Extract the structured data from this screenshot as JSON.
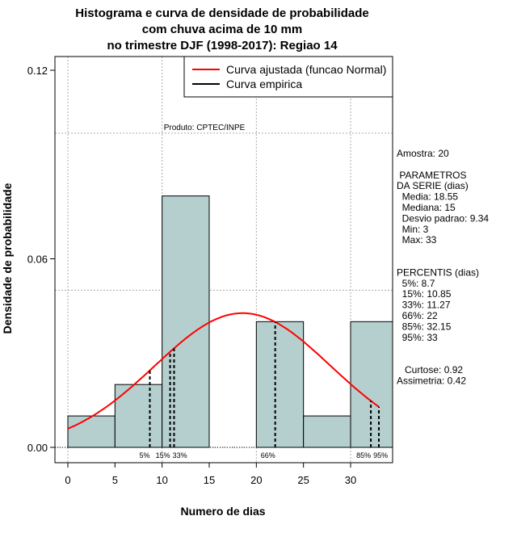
{
  "chart_data": {
    "type": "bar",
    "title": [
      "Histograma e curva de densidade de probabilidade",
      "com chuva acima de 10 mm",
      "no trimestre DJF (1998-2017): Regiao 14"
    ],
    "xlabel": "Numero de dias",
    "ylabel": "Densidade de probabilidade",
    "xlim": [
      -1.4,
      34.4
    ],
    "ylim": [
      -0.005,
      0.125
    ],
    "x_ticks": [
      "0",
      "5",
      "10",
      "15",
      "20",
      "25",
      "30"
    ],
    "x_tick_values": [
      0,
      5,
      10,
      15,
      20,
      25,
      30
    ],
    "y_ticks": [
      "0.00",
      "0.06",
      "0.12"
    ],
    "y_tick_values": [
      0,
      0.06,
      0.12
    ],
    "grid_x": [
      0,
      10,
      20,
      30
    ],
    "grid_y": [
      0,
      0.05,
      0.1
    ],
    "bins": [
      [
        0,
        5
      ],
      [
        5,
        10
      ],
      [
        10,
        15
      ],
      [
        15,
        20
      ],
      [
        20,
        25
      ],
      [
        25,
        30
      ],
      [
        30,
        35
      ]
    ],
    "values": [
      0.01,
      0.02,
      0.08,
      0,
      0.04,
      0.01,
      0.04
    ],
    "bar_color": "#b5cfcf",
    "curve": {
      "mean": 18.55,
      "sd": 9.34,
      "from": 0,
      "to": 33,
      "color": "#ff0000"
    },
    "percentiles": [
      {
        "label": "5%",
        "value": 8.7
      },
      {
        "label": "15%",
        "value": 10.85
      },
      {
        "label": "33%",
        "value": 11.27
      },
      {
        "label": "66%",
        "value": 22
      },
      {
        "label": "85%",
        "value": 32.15
      },
      {
        "label": "95%",
        "value": 33
      }
    ],
    "legend": [
      {
        "label": "Curva ajustada (funcao Normal)",
        "color": "#ff0000"
      },
      {
        "label": "Curva empirica",
        "color": "#000000"
      }
    ],
    "legend_position": "top-right",
    "annotation": "Produto: CPTEC/INPE"
  },
  "side_panel": [
    "Amostra: 20",
    "",
    " PARAMETROS",
    "DA SERIE (dias)",
    "  Media: 18.55",
    "  Mediana: 15",
    "  Desvio padrao: 9.34",
    "  Min: 3",
    "  Max: 33",
    "",
    "",
    "PERCENTIS (dias)",
    "  5%: 8.7",
    "  15%: 10.85",
    "  33%: 11.27",
    "  66%: 22",
    "  85%: 32.15",
    "  95%: 33",
    "",
    "",
    "   Curtose: 0.92",
    "Assimetria: 0.42"
  ]
}
